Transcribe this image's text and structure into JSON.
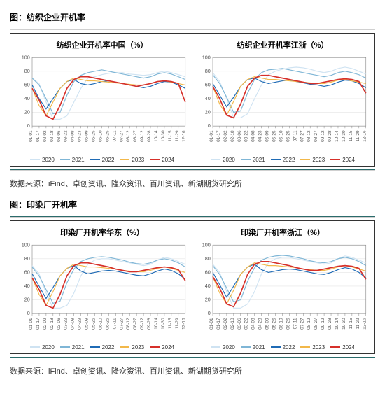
{
  "palette": {
    "c2020": "#cfe3f2",
    "c2021": "#7fb6d6",
    "c2022": "#1f6bb5",
    "c2023": "#f2b84a",
    "c2024": "#d6302a",
    "grid": "#e4e4e4",
    "axis": "#888888"
  },
  "x_labels": [
    "01-01",
    "01-17",
    "02-02",
    "02-18",
    "03-06",
    "03-22",
    "04-08",
    "04-23",
    "05-09",
    "05-25",
    "06-10",
    "06-25",
    "07-11",
    "07-27",
    "08-12",
    "08-27",
    "09-12",
    "09-28",
    "10-14",
    "10-30",
    "11-15",
    "11-29",
    "12-16"
  ],
  "years": [
    "2020",
    "2021",
    "2022",
    "2023",
    "2024"
  ],
  "figures": [
    {
      "header": "图：纺织企业开机率",
      "source": "数据来源：iFind、卓创资讯、隆众资讯、百川资讯、新湖期货研究所",
      "charts": [
        {
          "title": "纺织企业开机率中国（%）",
          "ylim": [
            0,
            100
          ],
          "ytick_step": 20,
          "series": {
            "2020": [
              70,
              62,
              35,
              10,
              10,
              15,
              35,
              55,
              70,
              72,
              75,
              77,
              78,
              78,
              76,
              75,
              74,
              75,
              78,
              80,
              78,
              75,
              72
            ],
            "2021": [
              70,
              60,
              40,
              18,
              20,
              45,
              65,
              74,
              78,
              80,
              82,
              80,
              78,
              76,
              74,
              72,
              70,
              72,
              76,
              78,
              76,
              72,
              68
            ],
            "2022": [
              60,
              40,
              25,
              40,
              55,
              65,
              68,
              62,
              60,
              62,
              65,
              66,
              64,
              62,
              60,
              58,
              56,
              58,
              62,
              65,
              64,
              60,
              55
            ],
            "2023": [
              55,
              30,
              15,
              35,
              55,
              65,
              70,
              68,
              66,
              66,
              65,
              64,
              63,
              62,
              61,
              60,
              60,
              62,
              65,
              66,
              64,
              62,
              60
            ],
            "2024": [
              55,
              38,
              15,
              10,
              30,
              55,
              68,
              72,
              72,
              70,
              68,
              66,
              64,
              62,
              60,
              58,
              60,
              62,
              65,
              66,
              65,
              62,
              35
            ]
          }
        },
        {
          "title": "纺织企业开机率江浙（%）",
          "ylim": [
            0,
            100
          ],
          "ytick_step": 20,
          "series": {
            "2020": [
              78,
              65,
              40,
              12,
              12,
              18,
              40,
              60,
              75,
              80,
              83,
              85,
              86,
              85,
              83,
              80,
              78,
              80,
              84,
              86,
              84,
              80,
              76
            ],
            "2021": [
              75,
              62,
              42,
              20,
              22,
              48,
              68,
              78,
              82,
              83,
              84,
              82,
              80,
              78,
              76,
              74,
              72,
              74,
              78,
              80,
              78,
              75,
              70
            ],
            "2022": [
              62,
              45,
              28,
              42,
              58,
              68,
              70,
              65,
              62,
              64,
              66,
              67,
              65,
              63,
              61,
              60,
              58,
              60,
              64,
              67,
              66,
              62,
              56
            ],
            "2023": [
              58,
              32,
              16,
              36,
              58,
              68,
              72,
              70,
              68,
              68,
              67,
              66,
              65,
              64,
              63,
              62,
              62,
              64,
              67,
              68,
              66,
              64,
              62
            ],
            "2024": [
              58,
              40,
              16,
              12,
              32,
              58,
              70,
              74,
              74,
              72,
              70,
              68,
              66,
              64,
              62,
              62,
              64,
              66,
              68,
              69,
              68,
              65,
              48
            ]
          }
        }
      ]
    },
    {
      "header": "图：印染厂开机率",
      "source": "数据来源：iFind、卓创资讯、隆众资讯、百川资讯、新湖期货研究所",
      "charts": [
        {
          "title": "印染厂开机率华东（%）",
          "ylim": [
            0,
            100
          ],
          "ytick_step": 20,
          "series": {
            "2020": [
              70,
              58,
              30,
              8,
              8,
              12,
              30,
              55,
              72,
              78,
              80,
              80,
              78,
              76,
              74,
              72,
              70,
              72,
              78,
              82,
              80,
              76,
              72
            ],
            "2021": [
              68,
              55,
              35,
              15,
              18,
              45,
              65,
              76,
              80,
              82,
              83,
              82,
              80,
              78,
              75,
              73,
              72,
              74,
              78,
              80,
              78,
              74,
              68
            ],
            "2022": [
              58,
              40,
              22,
              38,
              55,
              66,
              70,
              62,
              58,
              60,
              62,
              63,
              62,
              60,
              58,
              56,
              55,
              58,
              62,
              65,
              63,
              58,
              50
            ],
            "2023": [
              52,
              28,
              12,
              32,
              55,
              66,
              72,
              70,
              68,
              68,
              67,
              66,
              65,
              63,
              62,
              61,
              61,
              63,
              66,
              68,
              66,
              63,
              60
            ],
            "2024": [
              52,
              35,
              12,
              8,
              28,
              55,
              70,
              74,
              74,
              72,
              70,
              68,
              65,
              63,
              61,
              61,
              63,
              65,
              67,
              68,
              67,
              64,
              48
            ]
          }
        },
        {
          "title": "印染厂开机率浙江（%）",
          "ylim": [
            0,
            100
          ],
          "ytick_step": 20,
          "series": {
            "2020": [
              72,
              60,
              32,
              8,
              8,
              14,
              32,
              58,
              74,
              80,
              82,
              82,
              80,
              78,
              76,
              74,
              72,
              74,
              80,
              84,
              82,
              78,
              74
            ],
            "2021": [
              70,
              57,
              37,
              17,
              20,
              47,
              67,
              78,
              82,
              84,
              85,
              84,
              82,
              80,
              77,
              75,
              74,
              76,
              80,
              82,
              80,
              76,
              70
            ],
            "2022": [
              60,
              42,
              24,
              40,
              57,
              68,
              72,
              64,
              60,
              62,
              64,
              65,
              64,
              62,
              60,
              58,
              57,
              60,
              64,
              67,
              65,
              60,
              52
            ],
            "2023": [
              54,
              30,
              14,
              34,
              57,
              68,
              74,
              72,
              70,
              70,
              69,
              68,
              67,
              65,
              64,
              63,
              63,
              65,
              68,
              70,
              68,
              65,
              62
            ],
            "2024": [
              54,
              37,
              14,
              10,
              30,
              57,
              72,
              76,
              76,
              74,
              72,
              70,
              67,
              65,
              63,
              63,
              65,
              67,
              69,
              70,
              69,
              66,
              50
            ]
          }
        }
      ]
    }
  ]
}
